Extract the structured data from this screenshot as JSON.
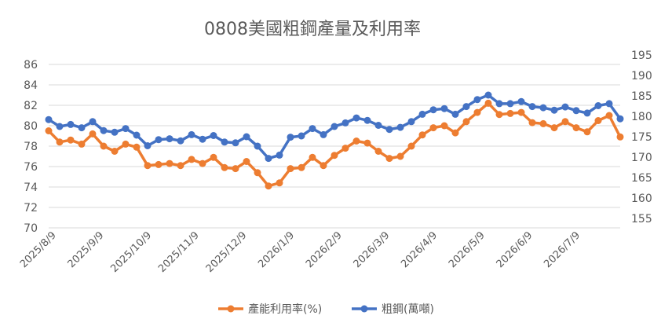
{
  "chart_data": {
    "type": "line",
    "title": "0808美國粗鋼產量及利用率",
    "x_ticks": [
      "2025/8/9",
      "2025/9/9",
      "2025/10/9",
      "2025/11/9",
      "2025/12/9",
      "2026/1/9",
      "2026/2/9",
      "2026/3/9",
      "2026/4/9",
      "2026/5/9",
      "2026/6/9",
      "2026/7/9"
    ],
    "y_left": {
      "range": [
        70,
        86
      ],
      "step": 2,
      "ticks": [
        "86",
        "84",
        "82",
        "80",
        "78",
        "76",
        "74",
        "72",
        "70"
      ]
    },
    "y_right": {
      "range": [
        155,
        195
      ],
      "step": 5,
      "ticks": [
        "195",
        "190",
        "185",
        "180",
        "175",
        "170",
        "165",
        "160",
        "155"
      ]
    },
    "grid": true,
    "legend_position": "bottom",
    "series": [
      {
        "name": "產能利用率(%)",
        "axis": "left",
        "color": "#ED7D31",
        "values": [
          79.5,
          78.4,
          78.6,
          78.2,
          79.2,
          78.0,
          77.5,
          78.2,
          77.9,
          76.1,
          76.2,
          76.3,
          76.1,
          76.7,
          76.3,
          76.9,
          75.9,
          75.8,
          76.5,
          75.4,
          74.1,
          74.4,
          75.8,
          75.9,
          76.9,
          76.1,
          77.1,
          77.8,
          78.5,
          78.3,
          77.5,
          76.8,
          77.0,
          78.0,
          79.1,
          79.8,
          80.0,
          79.3,
          80.4,
          81.3,
          82.2,
          81.1,
          81.2,
          81.3,
          80.3,
          80.2,
          79.8,
          80.4,
          79.8,
          79.4,
          80.5,
          81.0,
          78.9
        ]
      },
      {
        "name": "粗鋼(萬噸)",
        "axis": "right",
        "color": "#4472C4",
        "values": [
          181.5,
          179.8,
          180.3,
          179.5,
          181.0,
          178.8,
          178.4,
          179.3,
          177.7,
          175.1,
          176.6,
          176.8,
          176.3,
          177.8,
          176.7,
          177.6,
          176.0,
          175.8,
          177.3,
          175.0,
          172.0,
          172.8,
          177.2,
          177.5,
          179.3,
          177.8,
          179.8,
          180.7,
          181.9,
          181.3,
          180.1,
          179.1,
          179.6,
          181.0,
          182.8,
          183.9,
          184.2,
          182.8,
          184.7,
          186.4,
          187.5,
          185.4,
          185.4,
          185.9,
          184.7,
          184.4,
          183.8,
          184.6,
          183.7,
          183.1,
          184.9,
          185.4,
          181.7
        ]
      }
    ]
  }
}
